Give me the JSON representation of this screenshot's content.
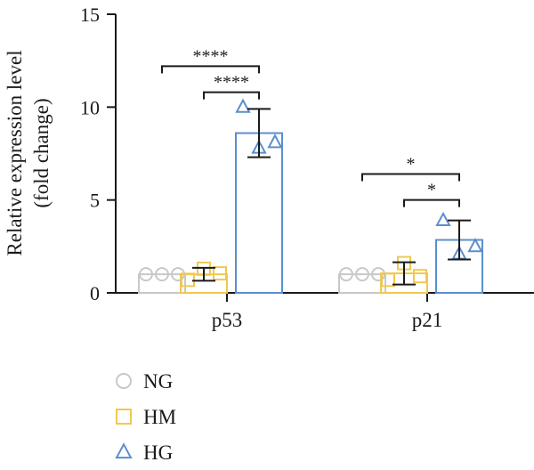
{
  "chart_data": {
    "type": "bar",
    "ylabel_line1": "Relative expression level",
    "ylabel_line2": "(fold change)",
    "ylim": [
      0,
      15
    ],
    "yticks": [
      0,
      5,
      10,
      15
    ],
    "categories": [
      "p53",
      "p21"
    ],
    "series": [
      {
        "name": "NG",
        "color": "#c8c8c8",
        "marker": "circle",
        "values": [
          1.0,
          1.0
        ],
        "errors": [
          0.0,
          0.0
        ],
        "points": [
          [
            1.0,
            1.0,
            1.0
          ],
          [
            1.0,
            1.0,
            1.0
          ]
        ]
      },
      {
        "name": "HM",
        "color": "#f0c850",
        "marker": "square",
        "values": [
          1.0,
          1.05
        ],
        "errors": [
          0.35,
          0.6
        ],
        "points": [
          [
            0.7,
            1.3,
            1.05
          ],
          [
            0.7,
            1.6,
            0.9
          ]
        ]
      },
      {
        "name": "HG",
        "color": "#5b8fcd",
        "marker": "triangle",
        "values": [
          8.6,
          2.85
        ],
        "errors": [
          1.3,
          1.05
        ],
        "points": [
          [
            10.0,
            7.8,
            8.1
          ],
          [
            3.9,
            2.1,
            2.5
          ]
        ]
      }
    ],
    "significance": [
      {
        "category": 0,
        "from": 0,
        "to": 2,
        "label": "****",
        "level": 12.2
      },
      {
        "category": 0,
        "from": 1,
        "to": 2,
        "label": "****",
        "level": 10.8
      },
      {
        "category": 1,
        "from": 0,
        "to": 2,
        "label": "*",
        "level": 6.4
      },
      {
        "category": 1,
        "from": 1,
        "to": 2,
        "label": "*",
        "level": 5.0
      }
    ],
    "legend_position": "bottom-left",
    "grid": false
  }
}
